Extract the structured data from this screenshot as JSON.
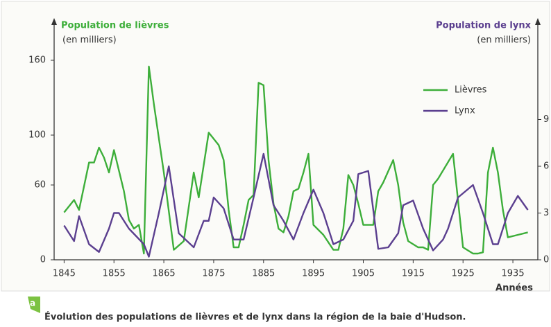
{
  "chart_data": {
    "type": "line",
    "left_title": "Population de lièvres",
    "left_unit": "(en milliers)",
    "right_title": "Population de lynx",
    "right_unit": "(en milliers)",
    "xlabel": "Années",
    "figure_label": "a",
    "caption": "Évolution des populations de lièvres et de lynx dans la région de la baie d'Hudson.",
    "xlim": [
      1843,
      1940
    ],
    "xticks": [
      1845,
      1855,
      1865,
      1875,
      1885,
      1895,
      1905,
      1915,
      1925,
      1935
    ],
    "ylim": [
      0,
      190
    ],
    "yticks": [
      0,
      60,
      100,
      160
    ],
    "y2lim": [
      0,
      15.2
    ],
    "y2ticks": [
      0,
      3,
      6,
      9
    ],
    "legend": "upper right",
    "series": [
      {
        "name": "Lièvres",
        "color": "#3dae3a",
        "x": [
          1845,
          1847,
          1848,
          1850,
          1851,
          1852,
          1853,
          1854,
          1855,
          1857,
          1858,
          1859,
          1860,
          1861,
          1862,
          1863,
          1865,
          1867,
          1869,
          1871,
          1872,
          1874,
          1876,
          1877,
          1878,
          1879,
          1880,
          1881,
          1882,
          1883,
          1884,
          1885,
          1886,
          1887,
          1888,
          1889,
          1890,
          1891,
          1892,
          1893,
          1894,
          1895,
          1897,
          1899,
          1900,
          1901,
          1902,
          1903,
          1904,
          1905,
          1906,
          1907,
          1908,
          1909,
          1911,
          1912,
          1913,
          1914,
          1916,
          1917,
          1918,
          1919,
          1920,
          1923,
          1925,
          1927,
          1928,
          1929,
          1930,
          1931,
          1932,
          1933,
          1934,
          1936,
          1938
        ],
        "values": [
          38,
          48,
          40,
          78,
          78,
          90,
          82,
          70,
          88,
          55,
          32,
          25,
          28,
          5,
          155,
          125,
          70,
          8,
          15,
          70,
          50,
          102,
          92,
          80,
          40,
          10,
          10,
          28,
          48,
          52,
          142,
          140,
          80,
          45,
          25,
          22,
          35,
          55,
          57,
          70,
          85,
          28,
          20,
          8,
          8,
          25,
          68,
          60,
          45,
          28,
          28,
          28,
          55,
          62,
          80,
          60,
          30,
          15,
          10,
          10,
          8,
          60,
          65,
          85,
          10,
          5,
          5,
          6,
          70,
          90,
          70,
          40,
          18,
          20,
          22
        ]
      },
      {
        "name": "Lynx",
        "color": "#5b3f8f",
        "axis": "y2",
        "x": [
          1845,
          1847,
          1848,
          1850,
          1852,
          1854,
          1855,
          1856,
          1858,
          1861,
          1862,
          1864,
          1866,
          1868,
          1871,
          1873,
          1874,
          1875,
          1877,
          1879,
          1881,
          1883,
          1885,
          1887,
          1889,
          1891,
          1893,
          1895,
          1897,
          1899,
          1901,
          1903,
          1904,
          1906,
          1908,
          1910,
          1912,
          1913,
          1915,
          1917,
          1919,
          1921,
          1922,
          1924,
          1927,
          1929,
          1931,
          1932,
          1934,
          1936,
          1938
        ],
        "values": [
          2.2,
          1.2,
          2.8,
          1,
          0.5,
          2,
          3,
          3,
          2,
          1,
          0.2,
          3,
          6,
          1.7,
          0.8,
          2.5,
          2.5,
          4,
          3.3,
          1.3,
          1.3,
          4,
          6.8,
          3.5,
          2.5,
          1.3,
          3,
          4.5,
          3,
          1,
          1.3,
          2.5,
          5.5,
          5.7,
          0.7,
          0.8,
          1.7,
          3.5,
          3.8,
          2,
          0.6,
          1.3,
          2,
          4,
          4.8,
          3,
          1,
          1,
          3,
          4.1,
          3.2
        ]
      }
    ]
  }
}
